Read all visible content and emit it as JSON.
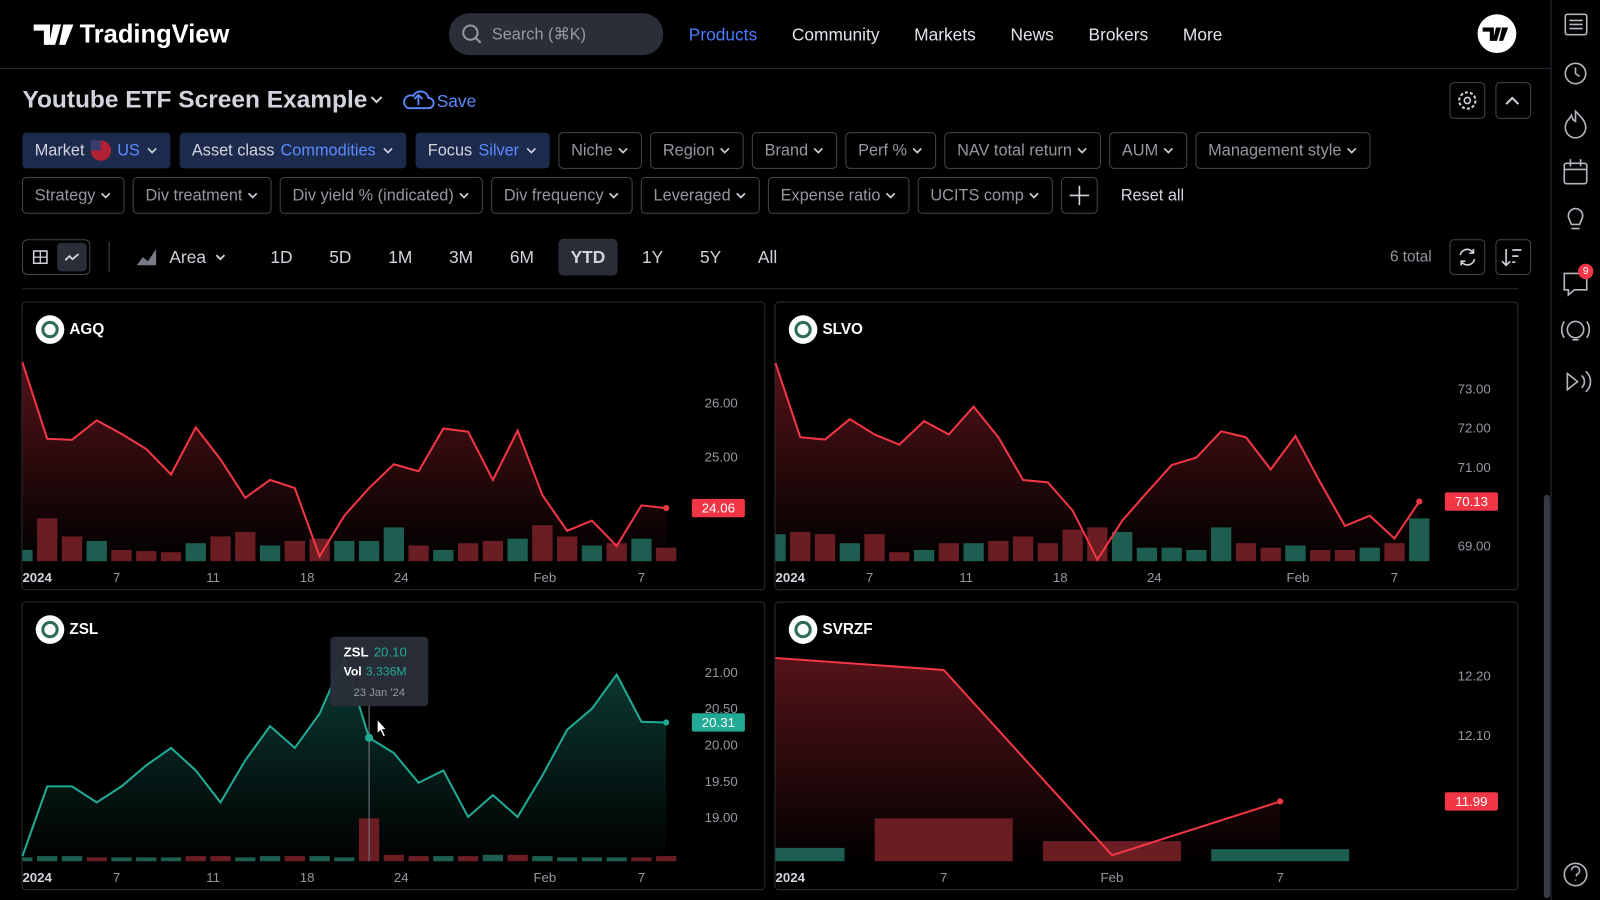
{
  "nav": {
    "brand": "TradingView",
    "search": "Search (⌘K)",
    "items": [
      "Products",
      "Community",
      "Markets",
      "News",
      "Brokers",
      "More"
    ]
  },
  "sidebar": {
    "badge": "9"
  },
  "header": {
    "title": "Youtube ETF Screen Example",
    "save": "Save"
  },
  "filters": {
    "row1": [
      {
        "label": "Market",
        "value": "US"
      },
      {
        "label": "Asset class",
        "value": "Commodities"
      },
      {
        "label": "Focus",
        "value": "Silver"
      },
      {
        "label": "Niche"
      },
      {
        "label": "Region"
      },
      {
        "label": "Brand"
      },
      {
        "label": "Perf %"
      },
      {
        "label": "NAV total return"
      },
      {
        "label": "AUM"
      },
      {
        "label": "Management style"
      }
    ],
    "row2": [
      {
        "label": "Strategy"
      },
      {
        "label": "Div treatment"
      },
      {
        "label": "Div yield % (indicated)"
      },
      {
        "label": "Div frequency"
      },
      {
        "label": "Leveraged"
      },
      {
        "label": "Expense ratio"
      },
      {
        "label": "UCITS comp"
      }
    ],
    "reset": "Reset all"
  },
  "toolbar": {
    "chart_style": "Area",
    "periods": [
      "1D",
      "5D",
      "1M",
      "3M",
      "6M",
      "YTD",
      "1Y",
      "5Y",
      "All"
    ],
    "active_period": 5,
    "total": "6 total"
  },
  "volume_colors": {
    "up": "#1d5e50",
    "down": "#6b1d24"
  },
  "panels": [
    {
      "ticker": "AGQ",
      "color": "#f23645",
      "ylim": [
        23.08,
        26.94
      ],
      "yticks": [
        {
          "value": 26,
          "label": "26.00"
        },
        {
          "value": 25,
          "label": "25.00"
        }
      ],
      "xlim": [
        0,
        26.5
      ],
      "xticks": [
        {
          "value": 0,
          "label": "2024"
        },
        {
          "value": 3.8,
          "label": "7"
        },
        {
          "value": 7.7,
          "label": "11"
        },
        {
          "value": 11.5,
          "label": "18"
        },
        {
          "value": 15.3,
          "label": "24"
        },
        {
          "value": 21.1,
          "label": "Feb"
        },
        {
          "value": 25,
          "label": "7"
        }
      ],
      "values": [
        26.75,
        25.34,
        25.32,
        25.68,
        25.43,
        25.15,
        24.68,
        25.55,
        24.96,
        24.25,
        24.58,
        24.43,
        23.17,
        23.92,
        24.43,
        24.87,
        24.74,
        25.53,
        25.47,
        24.58,
        25.49,
        24.3,
        23.64,
        23.83,
        23.36,
        24.11,
        24.06
      ],
      "volume": [
        1.0,
        3.8,
        2.2,
        1.8,
        1.0,
        0.9,
        0.8,
        1.6,
        2.2,
        2.6,
        1.4,
        1.8,
        2.0,
        1.8,
        1.8,
        3.0,
        1.4,
        1.0,
        1.6,
        1.8,
        2.0,
        3.2,
        2.2,
        1.4,
        1.6,
        2.0,
        1.2
      ]
    },
    {
      "ticker": "SLVO",
      "color": "#f23645",
      "ylim": [
        68.61,
        73.94
      ],
      "yticks": [
        {
          "value": 73,
          "label": "73.00"
        },
        {
          "value": 72,
          "label": "72.00"
        },
        {
          "value": 71,
          "label": "71.00"
        },
        {
          "value": 69,
          "label": "69.00"
        }
      ],
      "xlim": [
        0,
        26.5
      ],
      "xticks": [
        {
          "value": 0,
          "label": "2024"
        },
        {
          "value": 3.8,
          "label": "7"
        },
        {
          "value": 7.7,
          "label": "11"
        },
        {
          "value": 11.5,
          "label": "18"
        },
        {
          "value": 15.3,
          "label": "24"
        },
        {
          "value": 21.1,
          "label": "Feb"
        },
        {
          "value": 25,
          "label": "7"
        }
      ],
      "values": [
        73.66,
        71.77,
        71.71,
        72.23,
        71.84,
        71.58,
        72.18,
        71.84,
        72.55,
        71.77,
        70.68,
        70.62,
        69.9,
        68.65,
        69.64,
        70.36,
        71.06,
        71.25,
        71.92,
        71.77,
        70.95,
        71.8,
        70.62,
        69.51,
        69.77,
        69.19,
        70.13
      ],
      "volume": [
        2.4,
        2.6,
        2.4,
        1.6,
        2.4,
        0.8,
        1.0,
        1.6,
        1.6,
        1.8,
        2.2,
        1.6,
        2.8,
        3.0,
        2.6,
        1.2,
        1.2,
        1.0,
        3.0,
        1.6,
        1.2,
        1.4,
        1.0,
        1.0,
        1.2,
        1.6,
        3.8
      ]
    },
    {
      "ticker": "ZSL",
      "color": "#22ab94",
      "ylim": [
        18.4,
        21.28
      ],
      "yticks": [
        {
          "value": 21,
          "label": "21.00"
        },
        {
          "value": 20.5,
          "label": "20.50"
        },
        {
          "value": 20,
          "label": "20.00"
        },
        {
          "value": 19.5,
          "label": "19.50"
        },
        {
          "value": 19,
          "label": "19.00"
        }
      ],
      "xlim": [
        0,
        26.5
      ],
      "xticks": [
        {
          "value": 0,
          "label": "2024"
        },
        {
          "value": 3.8,
          "label": "7"
        },
        {
          "value": 7.7,
          "label": "11"
        },
        {
          "value": 11.5,
          "label": "18"
        },
        {
          "value": 15.3,
          "label": "24"
        },
        {
          "value": 21.1,
          "label": "Feb"
        },
        {
          "value": 25,
          "label": "7"
        }
      ],
      "values": [
        18.47,
        19.43,
        19.43,
        19.21,
        19.43,
        19.72,
        19.96,
        19.65,
        19.21,
        19.79,
        20.26,
        19.96,
        20.43,
        21.21,
        20.1,
        19.89,
        19.48,
        19.65,
        19.01,
        19.31,
        19.01,
        19.58,
        20.21,
        20.5,
        20.97,
        20.32,
        20.31
      ],
      "volume": [
        0.3,
        0.4,
        0.4,
        0.3,
        0.3,
        0.3,
        0.3,
        0.4,
        0.4,
        0.3,
        0.4,
        0.4,
        0.4,
        0.3,
        3.336,
        0.5,
        0.4,
        0.4,
        0.4,
        0.5,
        0.5,
        0.4,
        0.3,
        0.3,
        0.3,
        0.3,
        0.4
      ],
      "tooltip": {
        "index": 14,
        "price_label": "20.10",
        "vol_label": "Vol",
        "volume_label": "3.336M",
        "date": "23 Jan '24"
      }
    },
    {
      "ticker": "SVRZF",
      "color": "#f23645",
      "ylim": [
        11.89,
        12.24
      ],
      "yticks": [
        {
          "value": 12.2,
          "label": "12.20"
        },
        {
          "value": 12.1,
          "label": "12.10"
        }
      ],
      "xlim": [
        0,
        3.9
      ],
      "xticks": [
        {
          "value": 0,
          "label": "2024"
        },
        {
          "value": 1,
          "label": "7"
        },
        {
          "value": 2,
          "label": "Feb"
        },
        {
          "value": 3,
          "label": "7"
        }
      ],
      "values": [
        12.23,
        12.21,
        11.9,
        11.99
      ],
      "volume": [
        0.1,
        0.32,
        0.15,
        0.09
      ]
    }
  ]
}
